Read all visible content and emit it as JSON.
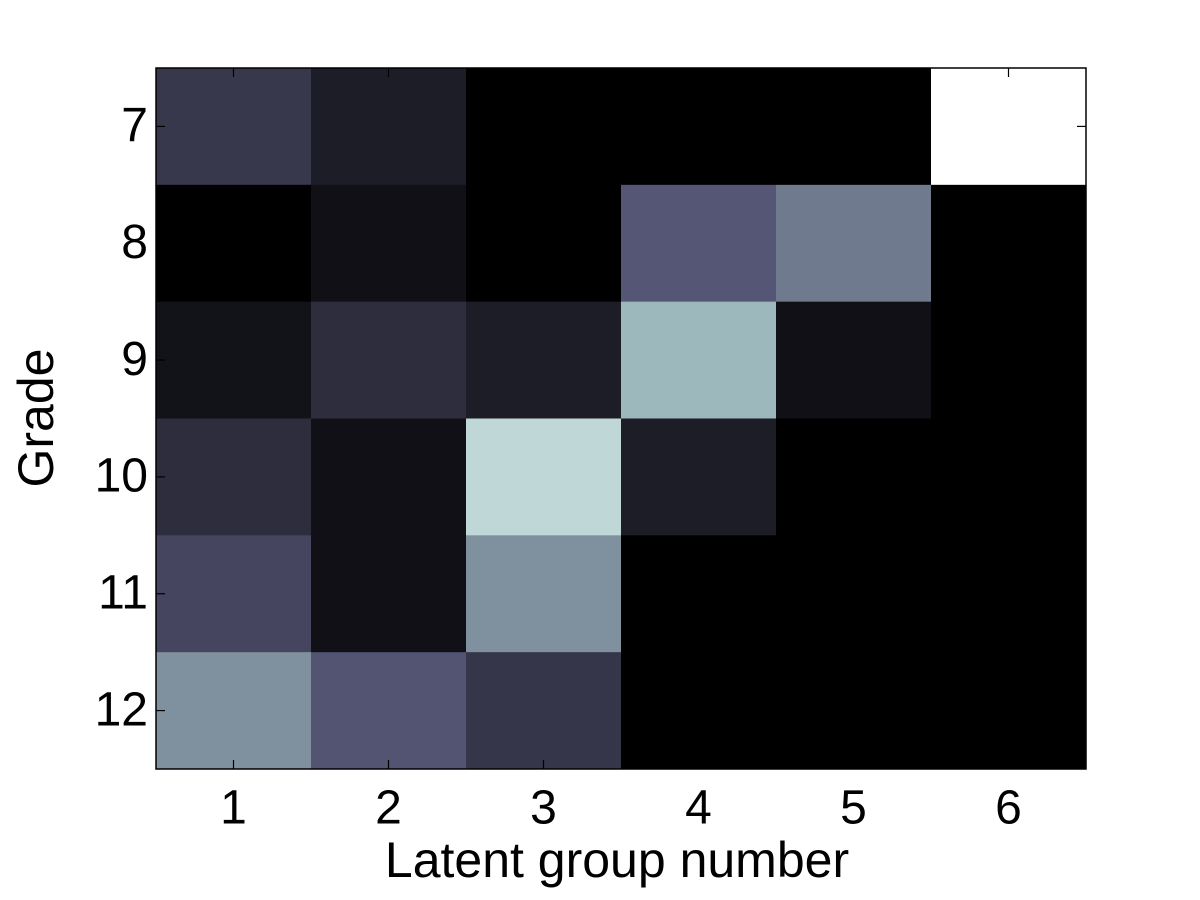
{
  "chart_data": {
    "type": "heatmap",
    "x_label": "Latent group number",
    "y_label": "Grade",
    "x": [
      1,
      2,
      3,
      4,
      5,
      6
    ],
    "y": [
      7,
      8,
      9,
      10,
      11,
      12
    ],
    "values": [
      [
        0.25,
        0.13,
        0,
        0,
        0,
        1
      ],
      [
        0,
        0.07,
        0,
        0.38,
        0.5,
        0
      ],
      [
        0.08,
        0.2,
        0.13,
        0.7,
        0.07,
        0
      ],
      [
        0.2,
        0.07,
        0.82,
        0.13,
        0,
        0
      ],
      [
        0.31,
        0.07,
        0.57,
        0,
        0,
        0
      ],
      [
        0.57,
        0.37,
        0.24,
        0,
        0,
        0
      ]
    ],
    "xlim": [
      0.5,
      6.5
    ],
    "ylim": [
      6.5,
      12.5
    ],
    "y_reversed": true,
    "xticks": [
      1,
      2,
      3,
      4,
      5,
      6
    ],
    "yticks": [
      7,
      8,
      9,
      10,
      11,
      12
    ],
    "colormap": "bone",
    "clim": [
      0,
      1
    ]
  }
}
